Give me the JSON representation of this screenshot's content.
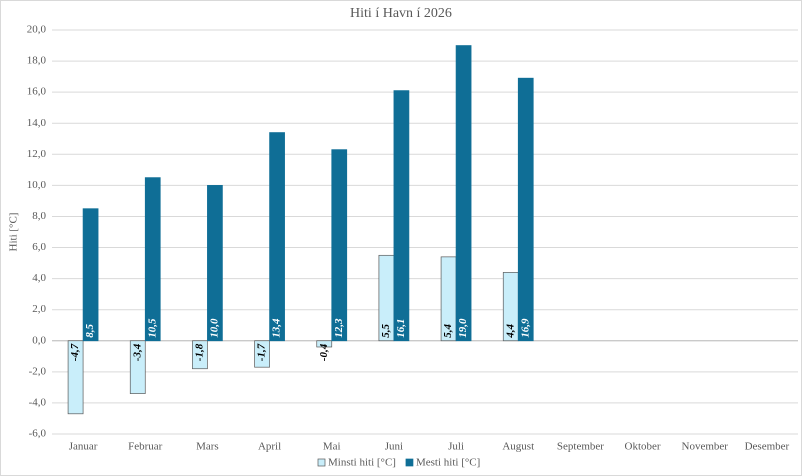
{
  "chart_data": {
    "type": "bar",
    "title": "Hiti í Havn í 2026",
    "y_label": "Hiti [°C]",
    "categories": [
      "Januar",
      "Februar",
      "Mars",
      "April",
      "Mai",
      "Juni",
      "Juli",
      "August",
      "September",
      "Oktober",
      "November",
      "Desember"
    ],
    "series": [
      {
        "name": "Minsti hiti [°C]",
        "color": "#c9eefa",
        "values": [
          -4.7,
          -3.4,
          -1.8,
          -1.7,
          -0.4,
          5.5,
          5.4,
          4.4,
          null,
          null,
          null,
          null
        ],
        "value_labels": [
          "-4,7",
          "-3,4",
          "-1,8",
          "-1,7",
          "-0,4",
          "5,5",
          "5,4",
          "4,4",
          null,
          null,
          null,
          null
        ]
      },
      {
        "name": "Mesti hiti [°C]",
        "color": "#0f6e96",
        "values": [
          8.5,
          10.5,
          10.0,
          13.4,
          12.3,
          16.1,
          19.0,
          16.9,
          null,
          null,
          null,
          null
        ],
        "value_labels": [
          "8,5",
          "10,5",
          "10,0",
          "13,4",
          "12,3",
          "16,1",
          "19,0",
          "16,9",
          null,
          null,
          null,
          null
        ]
      }
    ],
    "ylim": [
      -6,
      20
    ],
    "yticks": [
      {
        "value": -6,
        "label": "-6,0"
      },
      {
        "value": -4,
        "label": "-4,0"
      },
      {
        "value": -2,
        "label": "-2,0"
      },
      {
        "value": 0,
        "label": "0,0"
      },
      {
        "value": 2,
        "label": "2,0"
      },
      {
        "value": 4,
        "label": "4,0"
      },
      {
        "value": 6,
        "label": "6,0"
      },
      {
        "value": 8,
        "label": "8,0"
      },
      {
        "value": 10,
        "label": "10,0"
      },
      {
        "value": 12,
        "label": "12,0"
      },
      {
        "value": 14,
        "label": "14,0"
      },
      {
        "value": 16,
        "label": "16,0"
      },
      {
        "value": 18,
        "label": "18,0"
      },
      {
        "value": 20,
        "label": "20,0"
      }
    ],
    "grid": true,
    "legend": "bottom"
  }
}
